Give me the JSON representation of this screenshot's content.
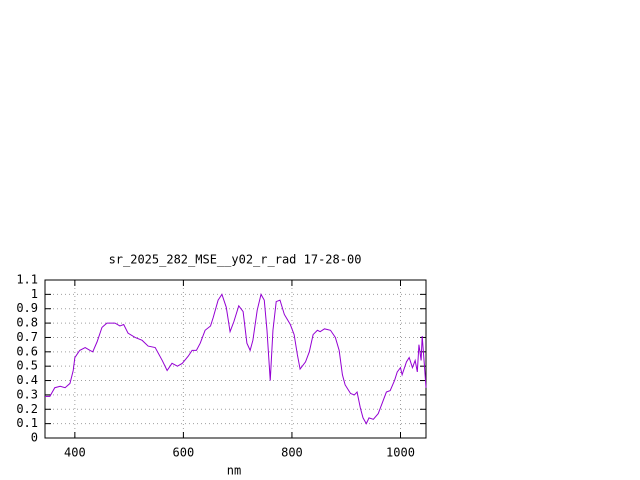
{
  "chart_data": {
    "type": "line",
    "title": "sr_2025_282_MSE__y02_r_rad 17-28-00",
    "x_label": "nm",
    "x": [
      345,
      354,
      363,
      373,
      382,
      391,
      397,
      400,
      409,
      419,
      428,
      433,
      441,
      450,
      459,
      474,
      483,
      490,
      498,
      511,
      524,
      535,
      548,
      561,
      570,
      579,
      589,
      598,
      609,
      616,
      624,
      631,
      640,
      650,
      655,
      664,
      671,
      679,
      686,
      693,
      702,
      710,
      717,
      723,
      728,
      736,
      743,
      749,
      754,
      760,
      765,
      771,
      778,
      786,
      797,
      804,
      810,
      815,
      825,
      832,
      839,
      847,
      852,
      860,
      871,
      880,
      887,
      893,
      898,
      908,
      915,
      920,
      926,
      931,
      937,
      942,
      950,
      959,
      966,
      974,
      981,
      989,
      994,
      1000,
      1003,
      1011,
      1016,
      1022,
      1027,
      1031,
      1034,
      1038,
      1040,
      1044,
      1047
    ],
    "series": [
      {
        "color": "#9400d3",
        "values": [
          0.29,
          0.29,
          0.35,
          0.36,
          0.35,
          0.38,
          0.47,
          0.56,
          0.61,
          0.63,
          0.61,
          0.6,
          0.67,
          0.77,
          0.8,
          0.8,
          0.78,
          0.79,
          0.73,
          0.7,
          0.68,
          0.64,
          0.63,
          0.54,
          0.47,
          0.52,
          0.5,
          0.52,
          0.57,
          0.61,
          0.61,
          0.66,
          0.75,
          0.78,
          0.84,
          0.96,
          1.0,
          0.91,
          0.74,
          0.81,
          0.92,
          0.88,
          0.66,
          0.61,
          0.68,
          0.89,
          1.0,
          0.96,
          0.75,
          0.4,
          0.75,
          0.95,
          0.96,
          0.86,
          0.79,
          0.72,
          0.58,
          0.48,
          0.53,
          0.6,
          0.72,
          0.75,
          0.74,
          0.76,
          0.75,
          0.7,
          0.61,
          0.44,
          0.37,
          0.31,
          0.3,
          0.32,
          0.21,
          0.14,
          0.1,
          0.14,
          0.13,
          0.17,
          0.24,
          0.32,
          0.33,
          0.4,
          0.46,
          0.49,
          0.44,
          0.53,
          0.56,
          0.49,
          0.54,
          0.46,
          0.65,
          0.54,
          0.71,
          0.51,
          0.35
        ]
      }
    ],
    "xlim": [
      345,
      1047
    ],
    "xticks": [
      400,
      600,
      800,
      1000
    ],
    "ylim": [
      0,
      1.1
    ],
    "yticks": [
      0,
      0.1,
      0.2,
      0.3,
      0.4,
      0.5,
      0.6,
      0.7,
      0.8,
      0.9,
      1,
      1.1
    ],
    "grid": true
  }
}
